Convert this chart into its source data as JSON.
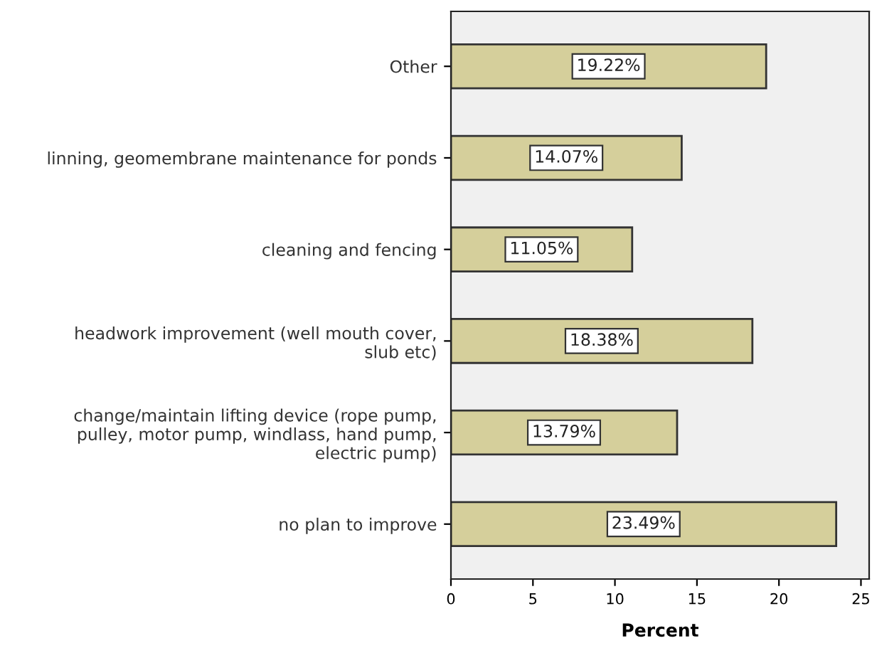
{
  "chart_data": {
    "type": "bar",
    "orientation": "horizontal",
    "xlabel": "Percent",
    "categories": [
      "Other",
      "linning, geomembrane maintenance for ponds",
      "cleaning and fencing",
      "headwork improvement (well mouth cover,\nslub etc)",
      "change/maintain lifting device (rope pump,\npulley, motor pump, windlass, hand pump,\nelectric pump)",
      "no plan to improve"
    ],
    "values": [
      19.22,
      14.07,
      11.05,
      18.38,
      13.79,
      23.49
    ],
    "value_labels": [
      "19.22%",
      "14.07%",
      "11.05%",
      "18.38%",
      "13.79%",
      "23.49%"
    ],
    "color": "#d5cf9b",
    "xlim": [
      0,
      25.5
    ],
    "xticks": [
      0,
      5,
      10,
      15,
      20,
      25
    ],
    "grid": false,
    "legend": false
  }
}
